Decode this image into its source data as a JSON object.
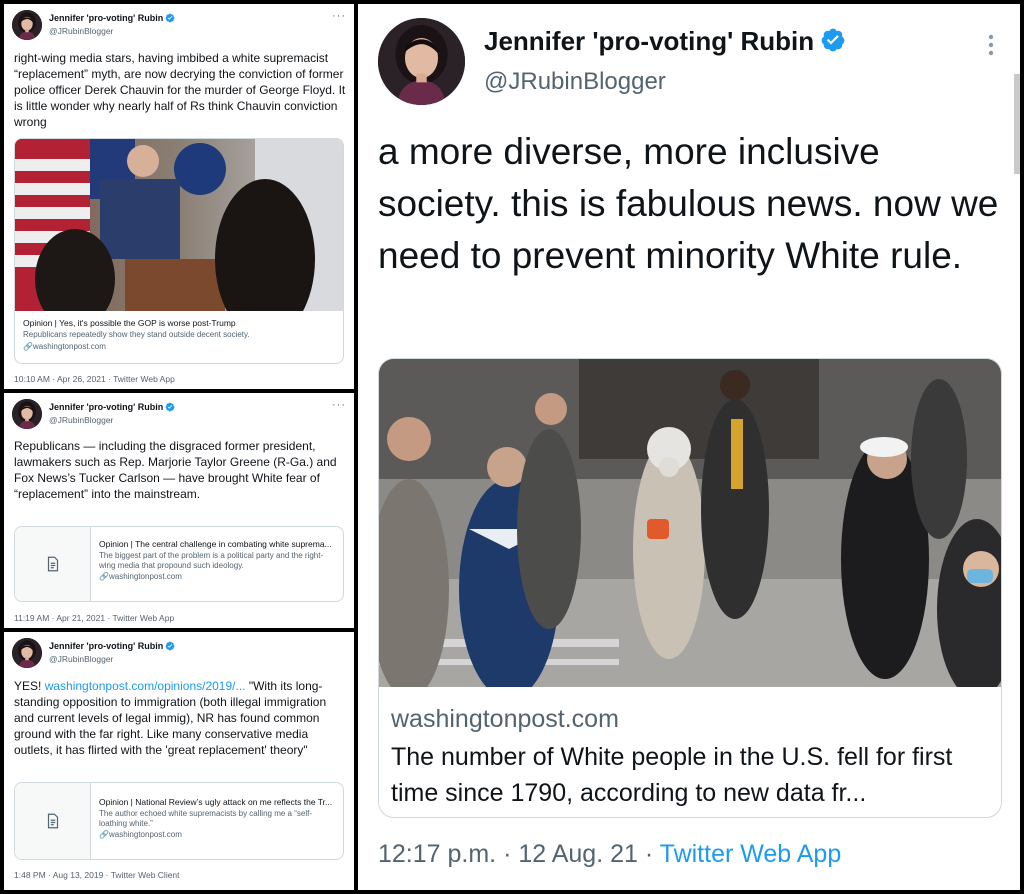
{
  "author": {
    "name": "Jennifer 'pro-voting' Rubin",
    "handle": "@JRubinBlogger"
  },
  "tweets": [
    {
      "text": "right-wing media stars, having imbibed a white supremacist “replacement” myth, are now decrying the conviction of former police officer Derek Chauvin for the murder of George Floyd. It is little wonder why nearly half of Rs think Chauvin conviction wrong",
      "card": {
        "title": "Opinion | Yes, it's possible the GOP is worse post-Trump",
        "description": "Republicans repeatedly show they stand outside decent society.",
        "domain": "washingtonpost.com"
      },
      "meta": "10:10 AM · Apr 26, 2021 · Twitter Web App"
    },
    {
      "text": "Republicans — including the disgraced former president, lawmakers such as Rep. Marjorie Taylor Greene (R-Ga.) and Fox News’s Tucker Carlson — have brought White fear of “replacement” into the mainstream.",
      "card": {
        "title": "Opinion | The central challenge in combating white suprema...",
        "description": "The biggest part of the problem is a political party and the right-wing media that propound such ideology.",
        "domain": "washingtonpost.com"
      },
      "meta": "11:19 AM · Apr 21, 2021 · Twitter Web App"
    },
    {
      "text_prefix": "YES! ",
      "link": "washingtonpost.com/opinions/2019/...",
      "text_suffix": " \"With its long-standing opposition to immigration (both illegal immigration and current levels of legal immig), NR has found common ground with the far right. Like many conservative media outlets, it has flirted with the 'great replacement' theory\"",
      "card": {
        "title": "Opinion | National Review’s ugly attack on me reflects the Tr...",
        "description": "The author echoed white supremacists by calling me a “self-loathing white.”",
        "domain": "washingtonpost.com"
      },
      "meta": "1:48 PM · Aug 13, 2019 · Twitter Web Client"
    },
    {
      "text": "a more diverse, more inclusive society. this is fabulous news. now we need to prevent minority White rule.",
      "card": {
        "domain": "washingtonpost.com",
        "title": "The number of White people in the U.S. fell for first time since 1790, according to new data fr..."
      },
      "meta_time": "12:17 p.m. · 12 Aug. 21 · ",
      "meta_source": "Twitter Web App"
    }
  ],
  "icons": {
    "verified": "verified-badge-icon",
    "more": "more-dots-icon",
    "link": "link-chain-icon",
    "article": "article-document-icon"
  },
  "colors": {
    "accent": "#1d9bf0",
    "text": "#0f1419",
    "muted": "#536471",
    "border": "#cfd9de"
  }
}
